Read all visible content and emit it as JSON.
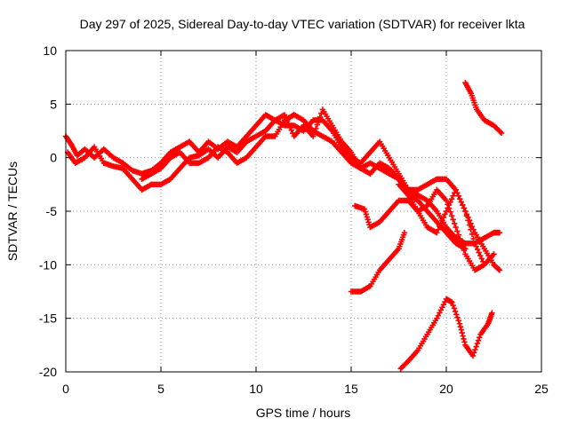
{
  "chart_data": {
    "type": "scatter",
    "title": "Day 297 of 2025, Sidereal Day-to-day VTEC variation (SDTVAR) for receiver lkta",
    "xlabel": "GPS time / hours",
    "ylabel": "SDTVAR / TECUs",
    "xlim": [
      0,
      25
    ],
    "ylim": [
      -20,
      10
    ],
    "xticks": [
      0,
      5,
      10,
      15,
      20,
      25
    ],
    "yticks": [
      -20,
      -15,
      -10,
      -5,
      0,
      5,
      10
    ],
    "xtick_labels": [
      "0",
      "5",
      "10",
      "15",
      "20",
      "25"
    ],
    "ytick_labels": [
      "-20",
      "-15",
      "-10",
      "-5",
      "0",
      "5",
      "10"
    ],
    "grid": true,
    "marker": "+",
    "marker_color": "#ff0000",
    "series": [
      {
        "name": "trace-main-a",
        "points": [
          [
            0.0,
            2.0
          ],
          [
            0.3,
            1.2
          ],
          [
            0.6,
            0.2
          ],
          [
            1.0,
            0.8
          ],
          [
            1.5,
            0.0
          ],
          [
            2.0,
            0.8
          ],
          [
            2.5,
            0.0
          ],
          [
            3.0,
            -0.5
          ],
          [
            3.5,
            -1.2
          ],
          [
            4.0,
            -1.5
          ],
          [
            4.5,
            -1.2
          ],
          [
            5.0,
            -0.5
          ],
          [
            5.5,
            0.5
          ],
          [
            6.0,
            1.0
          ],
          [
            6.5,
            1.5
          ],
          [
            7.0,
            0.5
          ],
          [
            7.5,
            1.5
          ],
          [
            8.0,
            0.8
          ],
          [
            8.5,
            1.5
          ],
          [
            9.0,
            1.0
          ],
          [
            9.5,
            2.0
          ],
          [
            10.0,
            3.0
          ],
          [
            10.5,
            4.0
          ],
          [
            11.0,
            3.5
          ],
          [
            11.5,
            3.0
          ],
          [
            12.0,
            3.0
          ],
          [
            12.5,
            2.5
          ],
          [
            13.0,
            3.5
          ],
          [
            13.5,
            3.5
          ],
          [
            14.0,
            2.5
          ],
          [
            14.5,
            1.0
          ],
          [
            15.0,
            0.0
          ],
          [
            15.5,
            -0.5
          ],
          [
            16.0,
            0.5
          ],
          [
            16.5,
            1.5
          ],
          [
            17.0,
            0.0
          ],
          [
            17.5,
            -1.5
          ],
          [
            18.0,
            -3.0
          ],
          [
            18.5,
            -3.5
          ],
          [
            19.0,
            -4.0
          ],
          [
            19.5,
            -5.0
          ],
          [
            20.0,
            -6.5
          ],
          [
            20.5,
            -7.5
          ],
          [
            21.0,
            -8.0
          ],
          [
            21.5,
            -8.0
          ],
          [
            22.0,
            -7.5
          ],
          [
            22.5,
            -7.0
          ],
          [
            22.8,
            -7.0
          ]
        ]
      },
      {
        "name": "trace-main-b",
        "points": [
          [
            0.1,
            0.5
          ],
          [
            0.5,
            -0.5
          ],
          [
            1.0,
            0.0
          ],
          [
            1.5,
            1.0
          ],
          [
            2.0,
            -0.5
          ],
          [
            2.5,
            -0.8
          ],
          [
            3.0,
            -1.0
          ],
          [
            3.5,
            -2.0
          ],
          [
            4.0,
            -3.0
          ],
          [
            4.5,
            -2.5
          ],
          [
            5.0,
            -2.5
          ],
          [
            5.5,
            -2.0
          ],
          [
            6.0,
            -1.0
          ],
          [
            6.5,
            0.0
          ],
          [
            7.0,
            0.2
          ],
          [
            7.5,
            0.8
          ],
          [
            8.0,
            0.0
          ],
          [
            8.5,
            1.0
          ],
          [
            9.0,
            0.5
          ],
          [
            9.5,
            1.5
          ],
          [
            10.0,
            2.0
          ],
          [
            10.5,
            2.5
          ],
          [
            11.0,
            3.5
          ],
          [
            11.5,
            4.0
          ],
          [
            12.0,
            2.0
          ],
          [
            12.5,
            3.0
          ],
          [
            13.0,
            2.0
          ],
          [
            13.5,
            4.5
          ],
          [
            14.0,
            3.0
          ],
          [
            14.5,
            1.5
          ],
          [
            15.0,
            0.5
          ],
          [
            15.5,
            -1.0
          ],
          [
            16.0,
            -1.5
          ],
          [
            16.5,
            -0.5
          ],
          [
            17.0,
            -1.0
          ],
          [
            17.5,
            -2.0
          ],
          [
            18.0,
            -3.5
          ],
          [
            18.5,
            -4.0
          ],
          [
            19.0,
            -5.0
          ],
          [
            19.5,
            -6.0
          ],
          [
            20.0,
            -7.0
          ],
          [
            20.5,
            -8.0
          ],
          [
            21.0,
            -8.5
          ]
        ]
      },
      {
        "name": "trace-main-c",
        "points": [
          [
            4.0,
            -2.0
          ],
          [
            4.5,
            -1.5
          ],
          [
            5.0,
            -1.0
          ],
          [
            5.5,
            0.0
          ],
          [
            6.0,
            0.5
          ],
          [
            6.5,
            -0.5
          ],
          [
            7.0,
            -0.5
          ],
          [
            7.5,
            0.0
          ],
          [
            8.0,
            1.0
          ],
          [
            8.5,
            0.5
          ],
          [
            9.0,
            -0.5
          ],
          [
            9.5,
            0.0
          ],
          [
            10.0,
            1.0
          ],
          [
            10.5,
            2.0
          ],
          [
            11.0,
            2.0
          ],
          [
            11.5,
            3.5
          ],
          [
            12.0,
            4.0
          ],
          [
            12.5,
            3.5
          ],
          [
            13.0,
            2.5
          ],
          [
            13.5,
            2.0
          ],
          [
            14.0,
            1.5
          ],
          [
            14.5,
            0.5
          ],
          [
            15.0,
            -0.5
          ],
          [
            15.5,
            -1.0
          ],
          [
            16.0,
            -0.5
          ],
          [
            16.5,
            -1.0
          ],
          [
            17.0,
            -1.5
          ],
          [
            17.5,
            -2.0
          ],
          [
            18.0,
            -3.0
          ],
          [
            18.5,
            -3.0
          ],
          [
            19.0,
            -2.5
          ],
          [
            19.5,
            -2.0
          ],
          [
            20.0,
            -2.0
          ],
          [
            20.5,
            -3.0
          ],
          [
            21.0,
            -5.0
          ],
          [
            21.5,
            -7.0
          ],
          [
            22.0,
            -8.5
          ],
          [
            22.5,
            -10.0
          ],
          [
            22.8,
            -10.5
          ]
        ]
      },
      {
        "name": "trace-main-d",
        "points": [
          [
            17.5,
            -2.5
          ],
          [
            18.0,
            -3.5
          ],
          [
            18.5,
            -5.0
          ],
          [
            19.0,
            -6.5
          ],
          [
            19.5,
            -7.0
          ],
          [
            20.0,
            -5.0
          ],
          [
            20.5,
            -3.0
          ],
          [
            21.0,
            -5.0
          ],
          [
            21.5,
            -8.0
          ],
          [
            22.0,
            -10.0
          ]
        ]
      },
      {
        "name": "trace-mid",
        "points": [
          [
            15.2,
            -4.5
          ],
          [
            15.7,
            -4.8
          ],
          [
            16.0,
            -6.5
          ],
          [
            16.5,
            -6.0
          ],
          [
            17.0,
            -5.0
          ],
          [
            17.5,
            -4.0
          ],
          [
            18.0,
            -4.0
          ],
          [
            18.5,
            -5.0
          ],
          [
            19.0,
            -4.5
          ],
          [
            19.5,
            -3.0
          ],
          [
            20.0,
            -4.0
          ],
          [
            20.5,
            -6.5
          ],
          [
            21.0,
            -9.0
          ],
          [
            21.5,
            -10.5
          ],
          [
            22.0,
            -10.0
          ],
          [
            22.5,
            -9.0
          ]
        ]
      },
      {
        "name": "trace-rise",
        "points": [
          [
            15.0,
            -12.5
          ],
          [
            15.5,
            -12.5
          ],
          [
            16.0,
            -12.0
          ],
          [
            16.5,
            -10.5
          ],
          [
            17.0,
            -9.5
          ],
          [
            17.5,
            -8.5
          ],
          [
            17.8,
            -7.0
          ]
        ]
      },
      {
        "name": "trace-top-right",
        "points": [
          [
            21.0,
            7.0
          ],
          [
            21.3,
            6.0
          ],
          [
            21.6,
            4.5
          ],
          [
            22.0,
            3.5
          ],
          [
            22.5,
            3.0
          ],
          [
            22.9,
            2.3
          ]
        ]
      },
      {
        "name": "trace-bottom",
        "points": [
          [
            17.6,
            -19.7
          ],
          [
            18.0,
            -19.0
          ],
          [
            18.5,
            -18.0
          ],
          [
            19.0,
            -16.5
          ],
          [
            19.5,
            -15.0
          ],
          [
            20.0,
            -13.2
          ],
          [
            20.3,
            -13.5
          ],
          [
            20.7,
            -15.5
          ],
          [
            21.0,
            -17.5
          ],
          [
            21.4,
            -18.5
          ],
          [
            21.8,
            -16.5
          ],
          [
            22.2,
            -15.5
          ],
          [
            22.4,
            -14.5
          ]
        ]
      }
    ]
  }
}
